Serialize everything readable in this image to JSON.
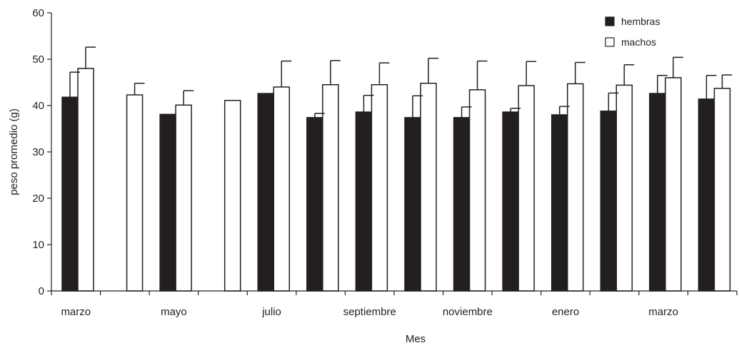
{
  "chart_data": {
    "type": "bar",
    "title": "",
    "xlabel": "Mes",
    "ylabel": "peso promedio (g)",
    "ylim": [
      0,
      60
    ],
    "yticks": [
      0,
      10,
      20,
      30,
      40,
      50,
      60
    ],
    "grid": false,
    "legend_position": "top-right",
    "x_tick_labels": [
      "marzo",
      "mayo",
      "julio",
      "septiembre",
      "noviembre",
      "enero",
      "marzo"
    ],
    "categories": [
      "1",
      "2",
      "3",
      "4",
      "5",
      "6",
      "7",
      "8",
      "9",
      "10",
      "11",
      "12",
      "13",
      "14"
    ],
    "series": [
      {
        "name": "hembras",
        "color": "#231f20",
        "values": [
          41.8,
          null,
          38.1,
          null,
          42.6,
          37.4,
          38.6,
          37.4,
          37.4,
          38.6,
          38.0,
          38.8,
          42.6,
          41.4
        ],
        "errors": [
          5.4,
          null,
          0,
          null,
          0,
          0.9,
          3.6,
          4.7,
          2.3,
          0.8,
          1.8,
          3.9,
          3.9,
          5.1
        ]
      },
      {
        "name": "machos",
        "color": "#ffffff",
        "values": [
          48.0,
          42.3,
          40.1,
          41.1,
          44.0,
          44.5,
          44.5,
          44.8,
          43.4,
          44.3,
          44.7,
          44.4,
          46.0,
          43.7
        ],
        "errors": [
          4.6,
          2.5,
          3.1,
          0,
          5.6,
          5.2,
          4.7,
          5.4,
          6.2,
          5.2,
          4.6,
          4.4,
          4.4,
          2.9
        ]
      }
    ]
  }
}
